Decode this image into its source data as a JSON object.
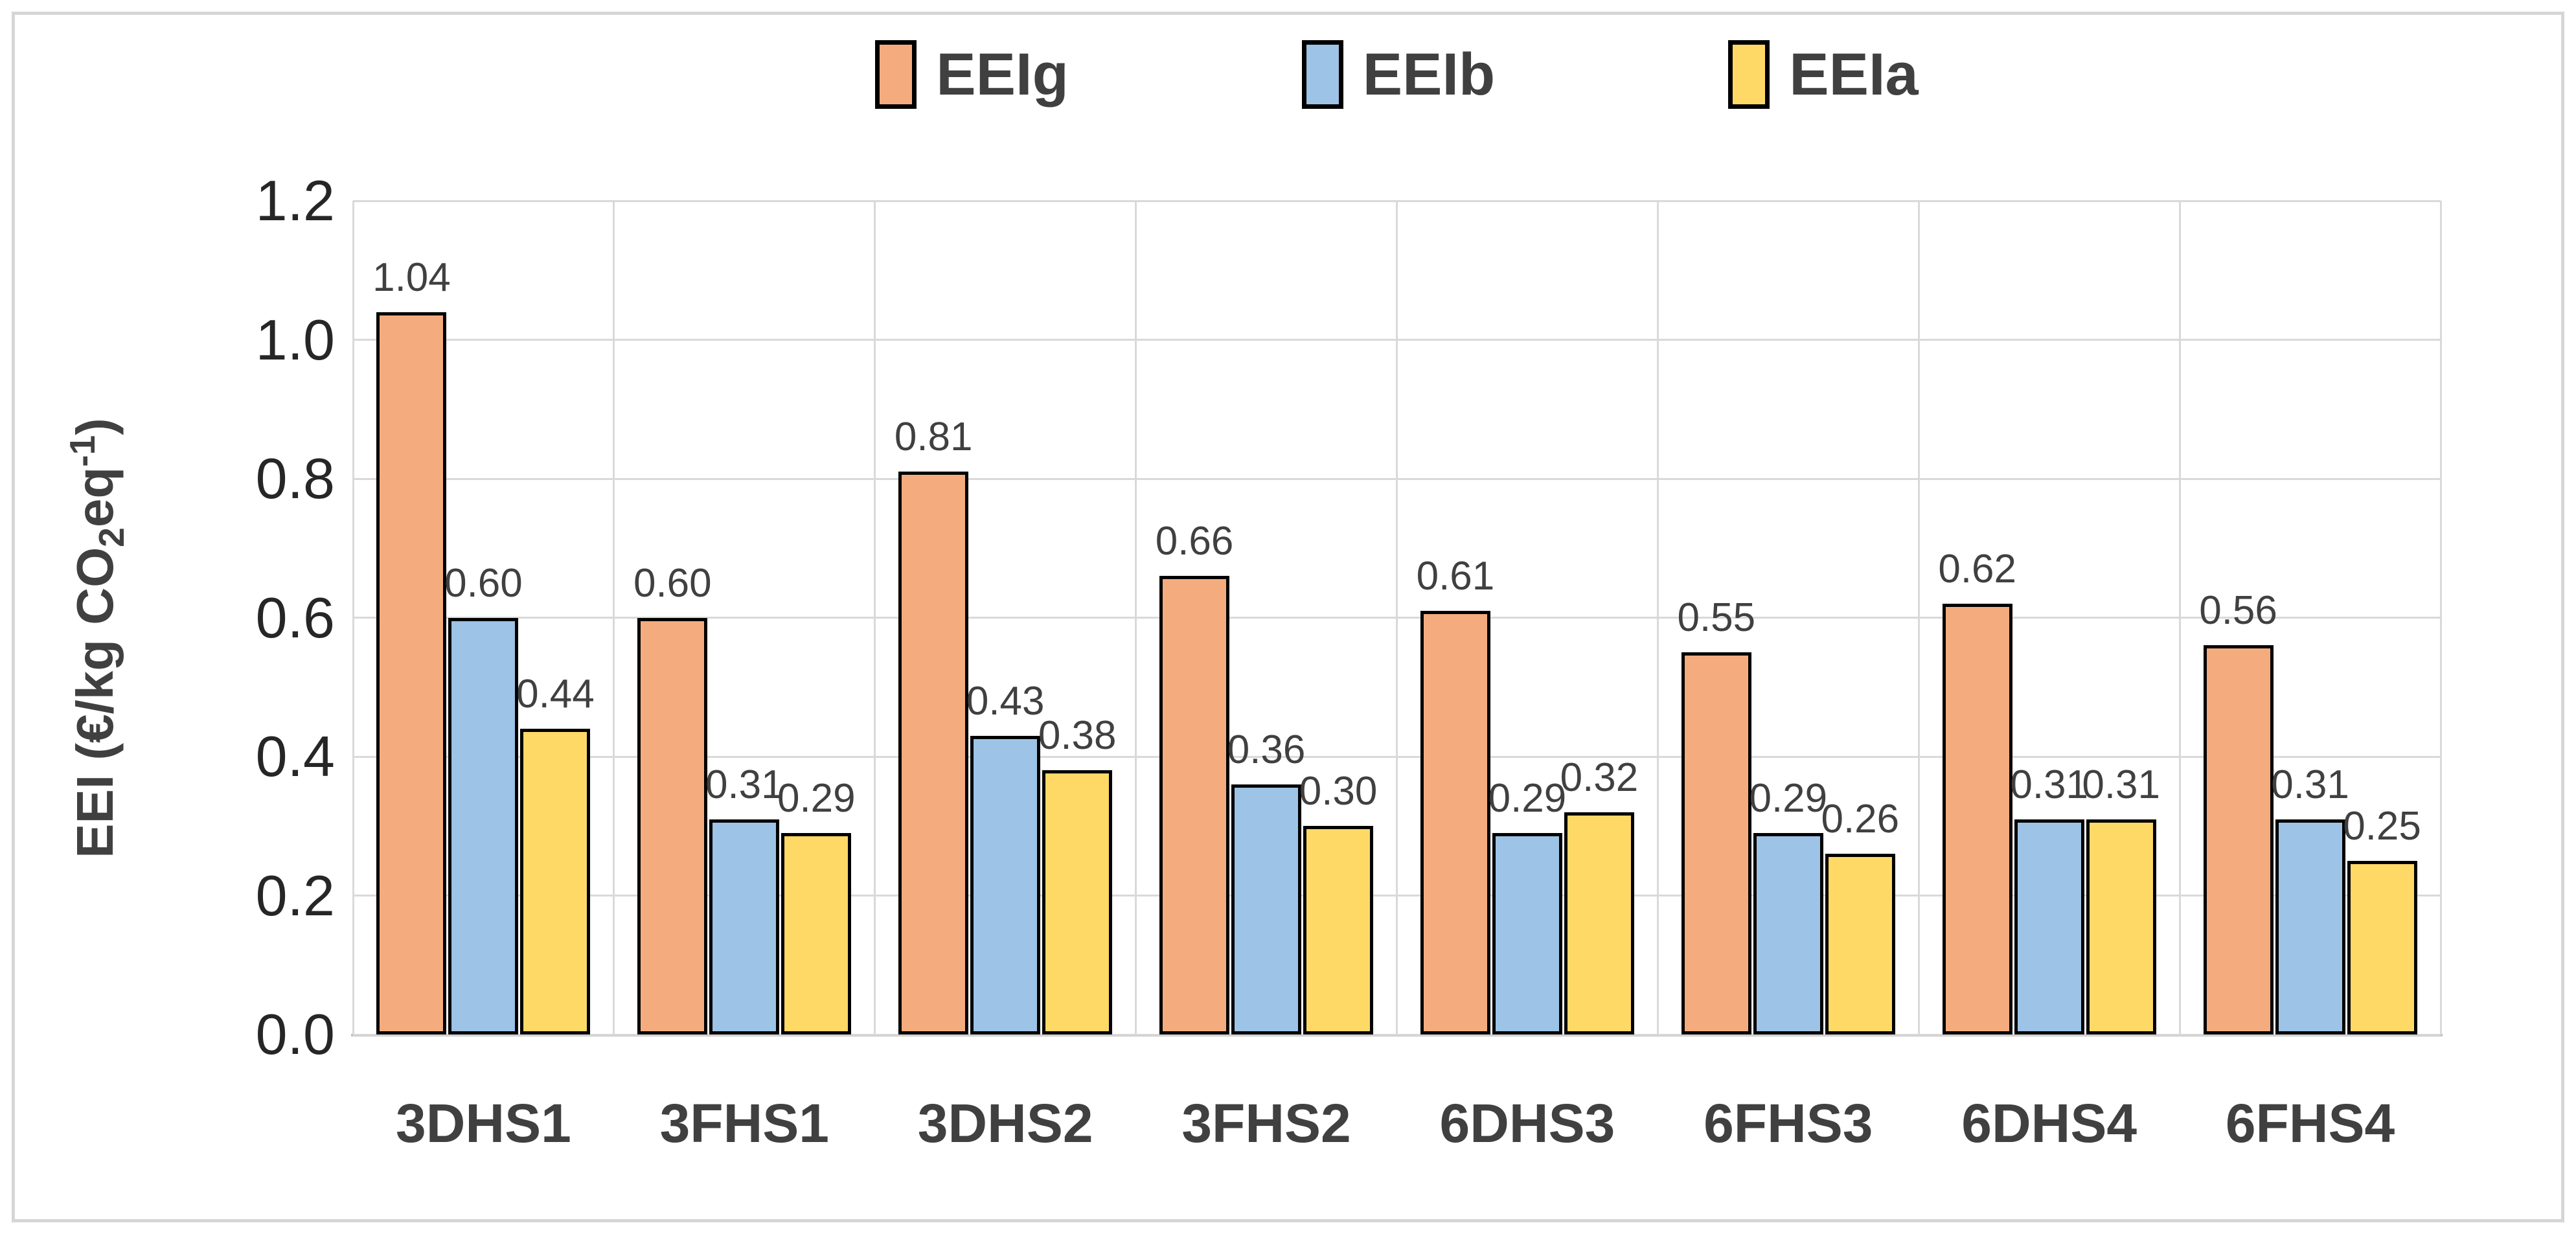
{
  "chart_data": {
    "type": "bar",
    "title": "",
    "categories": [
      "3DHS1",
      "3FHS1",
      "3DHS2",
      "3FHS2",
      "6DHS3",
      "6FHS3",
      "6DHS4",
      "6FHS4"
    ],
    "series": [
      {
        "name": "EEIg",
        "color": "#F4AC7E",
        "values": [
          1.04,
          0.6,
          0.81,
          0.66,
          0.61,
          0.55,
          0.62,
          0.56
        ],
        "labels": [
          "1.04",
          "0.60",
          "0.81",
          "0.66",
          "0.61",
          "0.55",
          "0.62",
          "0.56"
        ]
      },
      {
        "name": "EEIb",
        "color": "#9DC3E6",
        "values": [
          0.6,
          0.31,
          0.43,
          0.36,
          0.29,
          0.29,
          0.31,
          0.31
        ],
        "labels": [
          "0.60",
          "0.31",
          "0.43",
          "0.36",
          "0.29",
          "0.29",
          "0.31",
          "0.31"
        ]
      },
      {
        "name": "EEIa",
        "color": "#FFD966",
        "values": [
          0.44,
          0.29,
          0.38,
          0.3,
          0.32,
          0.26,
          0.31,
          0.25
        ],
        "labels": [
          "0.44",
          "0.29",
          "0.38",
          "0.30",
          "0.32",
          "0.26",
          "0.31",
          "0.25"
        ]
      }
    ],
    "ylabel_parts": {
      "prefix": "EEI (€/kg CO",
      "sub": "2",
      "mid": "eq",
      "sup": "-1",
      "suffix": ")"
    },
    "y_ticks": [
      "0.0",
      "0.2",
      "0.4",
      "0.6",
      "0.8",
      "1.0",
      "1.2"
    ],
    "ylim": [
      0,
      1.2
    ],
    "grid": true,
    "legend_position": "top",
    "colors": {
      "grid_line": "#D9D9D9",
      "axis_line": "#BFBFBF",
      "bar_border": "#000000",
      "text_dark": "#404040",
      "tick_text": "#262626"
    }
  }
}
